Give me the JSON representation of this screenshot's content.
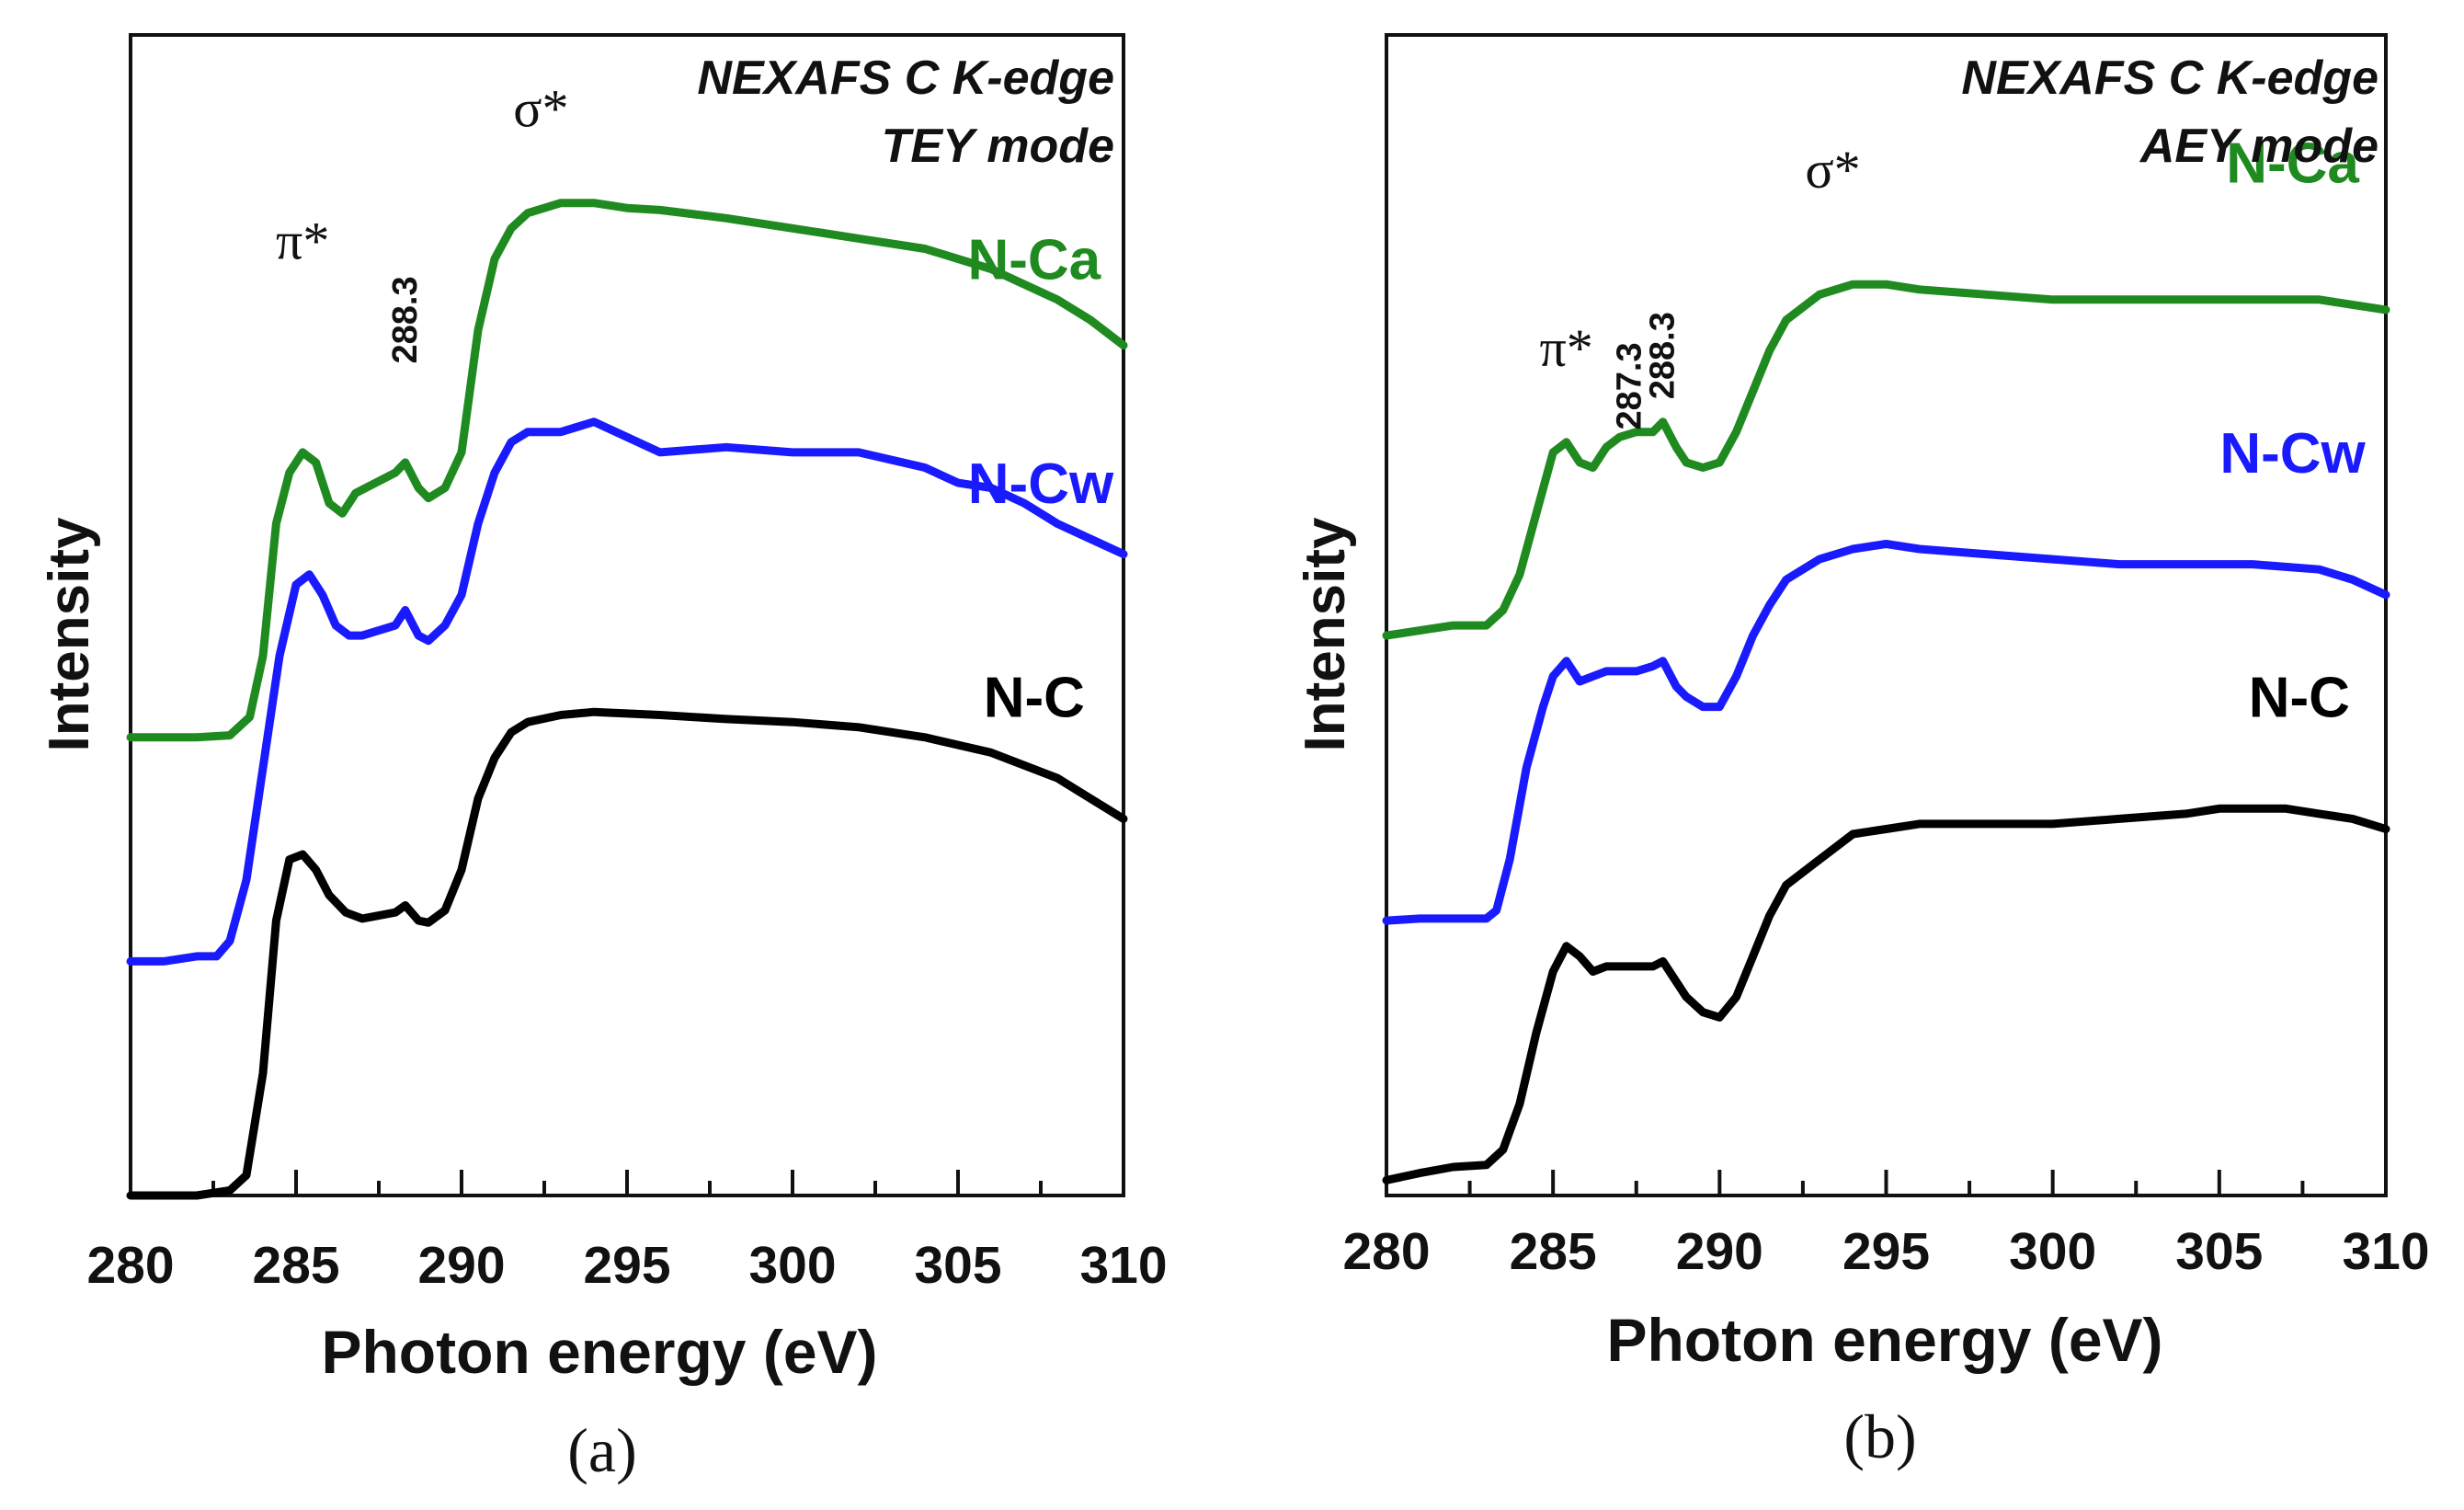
{
  "chart_data": [
    {
      "type": "line",
      "panel_label": "(a)",
      "xlabel": "Photon energy (eV)",
      "ylabel": "Intensity",
      "xlim": [
        280,
        310
      ],
      "ylim": [
        0,
        11.4
      ],
      "xticks": [
        280,
        285,
        290,
        295,
        300,
        305,
        310
      ],
      "info_lines": [
        "NEXAFS C K-edge",
        "TEY mode"
      ],
      "annotations": [
        {
          "text": "π*",
          "x": 285.2,
          "y": 9.2,
          "kind": "peak"
        },
        {
          "text": "288.3",
          "x": 288.3,
          "y": 8.6,
          "kind": "peaknum"
        },
        {
          "text": "σ*",
          "x": 292.4,
          "y": 10.5,
          "kind": "peak"
        }
      ],
      "series": [
        {
          "name": "N-Ca",
          "color": "#1f8a1f",
          "label_pos": [
            307.3,
            9.0
          ],
          "x": [
            280.0,
            281.0,
            282.0,
            283.0,
            283.6,
            284.0,
            284.4,
            284.8,
            285.2,
            285.6,
            286.0,
            286.4,
            286.8,
            287.4,
            288.0,
            288.3,
            288.7,
            289.0,
            289.5,
            290.0,
            290.5,
            291.0,
            291.5,
            292.0,
            293.0,
            294.0,
            295.0,
            296.0,
            298.0,
            300.0,
            302.0,
            304.0,
            306.0,
            308.0,
            309.0,
            310.0
          ],
          "y": [
            4.5,
            4.5,
            4.5,
            4.52,
            4.7,
            5.3,
            6.6,
            7.1,
            7.3,
            7.2,
            6.8,
            6.7,
            6.9,
            7.0,
            7.1,
            7.2,
            6.95,
            6.85,
            6.95,
            7.3,
            8.5,
            9.2,
            9.5,
            9.65,
            9.75,
            9.75,
            9.7,
            9.68,
            9.6,
            9.5,
            9.4,
            9.3,
            9.1,
            8.8,
            8.6,
            8.35
          ]
        },
        {
          "name": "N-Cw",
          "color": "#1a1aff",
          "label_pos": [
            307.5,
            6.8
          ],
          "x": [
            280.0,
            281.0,
            282.0,
            282.6,
            283.0,
            283.5,
            284.0,
            284.5,
            285.0,
            285.4,
            285.8,
            286.2,
            286.6,
            287.0,
            287.5,
            288.0,
            288.3,
            288.7,
            289.0,
            289.5,
            290.0,
            290.5,
            291.0,
            291.5,
            292.0,
            293.0,
            294.0,
            295.0,
            296.0,
            298.0,
            300.0,
            302.0,
            304.0,
            305.0,
            306.0,
            307.0,
            308.0,
            309.0,
            310.0
          ],
          "y": [
            2.3,
            2.3,
            2.35,
            2.35,
            2.5,
            3.1,
            4.2,
            5.3,
            6.0,
            6.1,
            5.9,
            5.6,
            5.5,
            5.5,
            5.55,
            5.6,
            5.75,
            5.5,
            5.45,
            5.6,
            5.9,
            6.6,
            7.1,
            7.4,
            7.5,
            7.5,
            7.6,
            7.45,
            7.3,
            7.35,
            7.3,
            7.3,
            7.15,
            7.0,
            6.95,
            6.8,
            6.6,
            6.45,
            6.3
          ]
        },
        {
          "name": "N-C",
          "color": "#000000",
          "label_pos": [
            307.3,
            4.7
          ],
          "x": [
            280.0,
            281.0,
            282.0,
            283.0,
            283.5,
            284.0,
            284.4,
            284.8,
            285.2,
            285.6,
            286.0,
            286.5,
            287.0,
            287.5,
            288.0,
            288.3,
            288.7,
            289.0,
            289.5,
            290.0,
            290.5,
            291.0,
            291.5,
            292.0,
            293.0,
            294.0,
            296.0,
            298.0,
            300.0,
            302.0,
            304.0,
            306.0,
            308.0,
            309.0,
            310.0
          ],
          "y": [
            0.0,
            0.0,
            0.0,
            0.05,
            0.2,
            1.2,
            2.7,
            3.3,
            3.35,
            3.2,
            2.95,
            2.78,
            2.72,
            2.75,
            2.78,
            2.85,
            2.7,
            2.68,
            2.8,
            3.2,
            3.9,
            4.3,
            4.55,
            4.65,
            4.72,
            4.75,
            4.72,
            4.68,
            4.65,
            4.6,
            4.5,
            4.35,
            4.1,
            3.9,
            3.7
          ]
        }
      ]
    },
    {
      "type": "line",
      "panel_label": "(b)",
      "xlabel": "Photon energy (eV)",
      "ylabel": "Intensity",
      "xlim": [
        280,
        310
      ],
      "ylim": [
        0,
        11.4
      ],
      "xticks": [
        280,
        285,
        290,
        295,
        300,
        305,
        310
      ],
      "info_lines": [
        "NEXAFS C K-edge",
        "AEY mode"
      ],
      "annotations": [
        {
          "text": "π*",
          "x": 285.4,
          "y": 8.15,
          "kind": "peak"
        },
        {
          "text": "287.3",
          "x": 287.3,
          "y": 7.95,
          "kind": "peaknum"
        },
        {
          "text": "288.3",
          "x": 288.3,
          "y": 8.25,
          "kind": "peaknum"
        },
        {
          "text": "σ*",
          "x": 293.4,
          "y": 9.9,
          "kind": "peak"
        }
      ],
      "series": [
        {
          "name": "N-Ca",
          "color": "#1f8a1f",
          "label_pos": [
            307.2,
            9.95
          ],
          "x": [
            280.0,
            281.0,
            282.0,
            283.0,
            283.5,
            284.0,
            284.5,
            285.0,
            285.4,
            285.8,
            286.2,
            286.6,
            287.0,
            287.5,
            288.0,
            288.3,
            288.7,
            289.0,
            289.5,
            290.0,
            290.5,
            291.0,
            291.5,
            292.0,
            293.0,
            294.0,
            295.0,
            296.0,
            298.0,
            300.0,
            302.0,
            304.0,
            306.0,
            308.0,
            309.0,
            310.0
          ],
          "y": [
            5.5,
            5.55,
            5.6,
            5.6,
            5.75,
            6.1,
            6.7,
            7.3,
            7.4,
            7.2,
            7.15,
            7.35,
            7.45,
            7.5,
            7.5,
            7.6,
            7.35,
            7.2,
            7.15,
            7.2,
            7.5,
            7.9,
            8.3,
            8.6,
            8.85,
            8.95,
            8.95,
            8.9,
            8.85,
            8.8,
            8.8,
            8.8,
            8.8,
            8.8,
            8.75,
            8.7
          ]
        },
        {
          "name": "N-Cw",
          "color": "#1a1aff",
          "label_pos": [
            307.2,
            7.1
          ],
          "x": [
            280.0,
            281.0,
            282.0,
            283.0,
            283.3,
            283.7,
            284.2,
            284.7,
            285.0,
            285.4,
            285.8,
            286.2,
            286.6,
            287.0,
            287.5,
            288.0,
            288.3,
            288.7,
            289.0,
            289.5,
            290.0,
            290.5,
            291.0,
            291.5,
            292.0,
            293.0,
            294.0,
            295.0,
            296.0,
            298.0,
            300.0,
            302.0,
            304.0,
            306.0,
            308.0,
            309.0,
            310.0
          ],
          "y": [
            2.7,
            2.72,
            2.72,
            2.72,
            2.8,
            3.3,
            4.2,
            4.8,
            5.1,
            5.25,
            5.05,
            5.1,
            5.15,
            5.15,
            5.15,
            5.2,
            5.25,
            5.0,
            4.9,
            4.8,
            4.8,
            5.1,
            5.5,
            5.8,
            6.05,
            6.25,
            6.35,
            6.4,
            6.35,
            6.3,
            6.25,
            6.2,
            6.2,
            6.2,
            6.15,
            6.05,
            5.9
          ]
        },
        {
          "name": "N-C",
          "color": "#000000",
          "label_pos": [
            307.4,
            4.7
          ],
          "x": [
            280.0,
            281.0,
            282.0,
            283.0,
            283.5,
            284.0,
            284.5,
            285.0,
            285.4,
            285.8,
            286.2,
            286.6,
            287.0,
            287.5,
            288.0,
            288.3,
            288.7,
            289.0,
            289.5,
            290.0,
            290.5,
            291.0,
            291.5,
            292.0,
            293.0,
            294.0,
            295.0,
            296.0,
            298.0,
            300.0,
            302.0,
            304.0,
            305.0,
            306.0,
            307.0,
            308.0,
            309.0,
            310.0
          ],
          "y": [
            0.15,
            0.22,
            0.28,
            0.3,
            0.45,
            0.9,
            1.6,
            2.2,
            2.45,
            2.35,
            2.2,
            2.25,
            2.25,
            2.25,
            2.25,
            2.3,
            2.1,
            1.95,
            1.8,
            1.75,
            1.95,
            2.35,
            2.75,
            3.05,
            3.3,
            3.55,
            3.6,
            3.65,
            3.65,
            3.65,
            3.7,
            3.75,
            3.8,
            3.8,
            3.8,
            3.75,
            3.7,
            3.6
          ]
        }
      ]
    }
  ]
}
